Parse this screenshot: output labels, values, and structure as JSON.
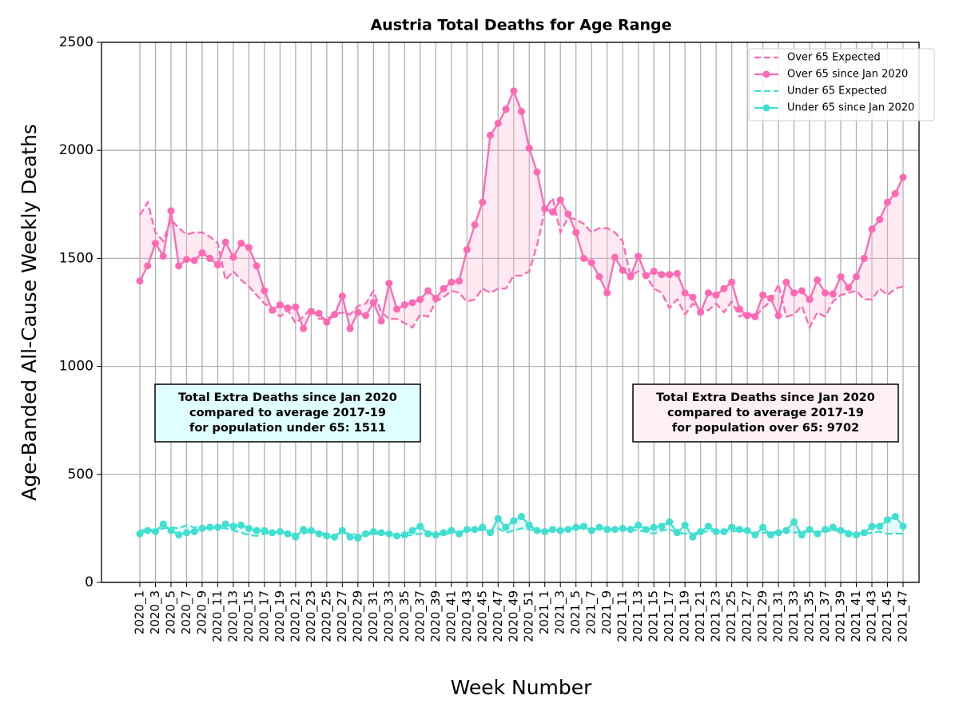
{
  "chart_data": {
    "type": "line",
    "title": "Austria Total Deaths for Age Range",
    "xlabel": "Week Number",
    "ylabel": "Age-Banded All-Cause Weekly Deaths",
    "categories": [
      "2020_1",
      null,
      "2020_3",
      null,
      "2020_5",
      null,
      "2020_7",
      null,
      "2020_9",
      null,
      "2020_11",
      null,
      "2020_13",
      null,
      "2020_15",
      null,
      "2020_17",
      null,
      "2020_19",
      null,
      "2020_21",
      null,
      "2020_23",
      null,
      "2020_25",
      null,
      "2020_27",
      null,
      "2020_29",
      null,
      "2020_31",
      null,
      "2020_33",
      null,
      "2020_35",
      null,
      "2020_37",
      null,
      "2020_39",
      null,
      "2020_41",
      null,
      "2020_43",
      null,
      "2020_45",
      null,
      "2020_47",
      null,
      "2020_49",
      null,
      "2020_51",
      null,
      "2021_1",
      null,
      "2021_3",
      null,
      "2021_5",
      null,
      "2021_7",
      null,
      "2021_9",
      null,
      "2021_11",
      null,
      "2021_13",
      null,
      "2021_15",
      null,
      "2021_17",
      null,
      "2021_19",
      null,
      "2021_21",
      null,
      "2021_23",
      null,
      "2021_25",
      null,
      "2021_27",
      null,
      "2021_29",
      null,
      "2021_31",
      null,
      "2021_33",
      null,
      "2021_35",
      null,
      "2021_37",
      null,
      "2021_39",
      null,
      "2021_41",
      null,
      "2021_43",
      null,
      "2021_45",
      null,
      "2021_47"
    ],
    "series": [
      {
        "name": "Over 65 Expected",
        "color": "#ff69b4",
        "linestyle": "dashed",
        "marker": false,
        "values": [
          1700,
          1760,
          1620,
          1580,
          1680,
          1640,
          1610,
          1620,
          1620,
          1600,
          1570,
          1400,
          1440,
          1400,
          1370,
          1330,
          1290,
          1270,
          1230,
          1260,
          1200,
          1230,
          1270,
          1220,
          1220,
          1240,
          1250,
          1240,
          1280,
          1290,
          1350,
          1250,
          1220,
          1220,
          1200,
          1180,
          1240,
          1230,
          1300,
          1320,
          1350,
          1340,
          1300,
          1310,
          1360,
          1340,
          1360,
          1360,
          1420,
          1420,
          1440,
          1560,
          1720,
          1780,
          1620,
          1690,
          1680,
          1660,
          1620,
          1640,
          1640,
          1620,
          1580,
          1420,
          1440,
          1420,
          1360,
          1340,
          1270,
          1310,
          1240,
          1290,
          1260,
          1260,
          1290,
          1250,
          1300,
          1230,
          1250,
          1230,
          1270,
          1300,
          1380,
          1230,
          1240,
          1280,
          1180,
          1250,
          1230,
          1300,
          1330,
          1340,
          1350,
          1310,
          1310,
          1360,
          1330,
          1360,
          1370
        ]
      },
      {
        "name": "Over 65 since Jan 2020",
        "color": "#ff69b4",
        "linestyle": "solid",
        "marker": true,
        "values": [
          1395,
          1465,
          1570,
          1510,
          1720,
          1465,
          1495,
          1490,
          1525,
          1500,
          1470,
          1575,
          1505,
          1570,
          1550,
          1465,
          1350,
          1260,
          1285,
          1270,
          1275,
          1175,
          1255,
          1245,
          1205,
          1240,
          1325,
          1175,
          1250,
          1235,
          1295,
          1210,
          1385,
          1265,
          1285,
          1295,
          1310,
          1350,
          1315,
          1360,
          1390,
          1395,
          1540,
          1655,
          1760,
          2070,
          2125,
          2190,
          2275,
          2180,
          2010,
          1900,
          1730,
          1715,
          1770,
          1705,
          1620,
          1500,
          1480,
          1415,
          1340,
          1505,
          1445,
          1415,
          1510,
          1420,
          1440,
          1425,
          1425,
          1430,
          1340,
          1320,
          1250,
          1340,
          1330,
          1360,
          1390,
          1265,
          1235,
          1230,
          1330,
          1315,
          1235,
          1390,
          1340,
          1350,
          1310,
          1400,
          1340,
          1335,
          1415,
          1365,
          1415,
          1500,
          1635,
          1680,
          1760,
          1800,
          1875
        ]
      },
      {
        "name": "Under 65 Expected",
        "color": "#40e0d0",
        "linestyle": "dashed",
        "marker": false,
        "values": [
          240,
          245,
          240,
          250,
          255,
          250,
          265,
          255,
          250,
          250,
          255,
          250,
          240,
          230,
          220,
          215,
          225,
          230,
          235,
          230,
          225,
          225,
          240,
          230,
          225,
          220,
          230,
          225,
          220,
          220,
          225,
          225,
          225,
          220,
          215,
          220,
          225,
          230,
          225,
          220,
          230,
          235,
          240,
          245,
          240,
          240,
          250,
          230,
          240,
          250,
          245,
          240,
          235,
          240,
          245,
          245,
          250,
          250,
          245,
          250,
          250,
          245,
          245,
          245,
          240,
          235,
          225,
          240,
          245,
          230,
          225,
          225,
          235,
          235,
          240,
          240,
          235,
          240,
          235,
          225,
          230,
          230,
          235,
          235,
          230,
          235,
          240,
          230,
          235,
          240,
          240,
          235,
          230,
          225,
          230,
          235,
          225,
          225,
          225
        ]
      },
      {
        "name": "Under 65 since Jan 2020",
        "color": "#40e0d0",
        "linestyle": "solid",
        "marker": true,
        "values": [
          225,
          240,
          235,
          270,
          240,
          220,
          230,
          235,
          250,
          255,
          255,
          270,
          260,
          265,
          250,
          240,
          240,
          230,
          235,
          225,
          210,
          245,
          240,
          225,
          215,
          210,
          240,
          210,
          205,
          225,
          235,
          230,
          225,
          215,
          220,
          240,
          260,
          225,
          220,
          230,
          240,
          225,
          245,
          245,
          255,
          230,
          295,
          255,
          285,
          305,
          265,
          240,
          235,
          245,
          240,
          245,
          255,
          260,
          240,
          255,
          245,
          245,
          250,
          245,
          265,
          245,
          255,
          260,
          280,
          230,
          265,
          210,
          235,
          260,
          235,
          235,
          255,
          245,
          240,
          220,
          255,
          220,
          230,
          240,
          280,
          220,
          245,
          225,
          245,
          255,
          240,
          225,
          220,
          230,
          260,
          260,
          290,
          305,
          260
        ]
      }
    ],
    "fill_between": true,
    "ylim": [
      0,
      2500
    ],
    "yticks": [
      0,
      500,
      1000,
      1500,
      2000,
      2500
    ],
    "grid": true,
    "legend": "upper right",
    "annotations": [
      {
        "lines": [
          "Total Extra Deaths since Jan 2020",
          "compared to average 2017-19",
          "for population under 65: 1511"
        ],
        "color": "#e0ffff"
      },
      {
        "lines": [
          "Total Extra Deaths since Jan 2020",
          "compared to average 2017-19",
          "for population over 65: 9702"
        ],
        "color": "#fff0f5"
      }
    ]
  }
}
